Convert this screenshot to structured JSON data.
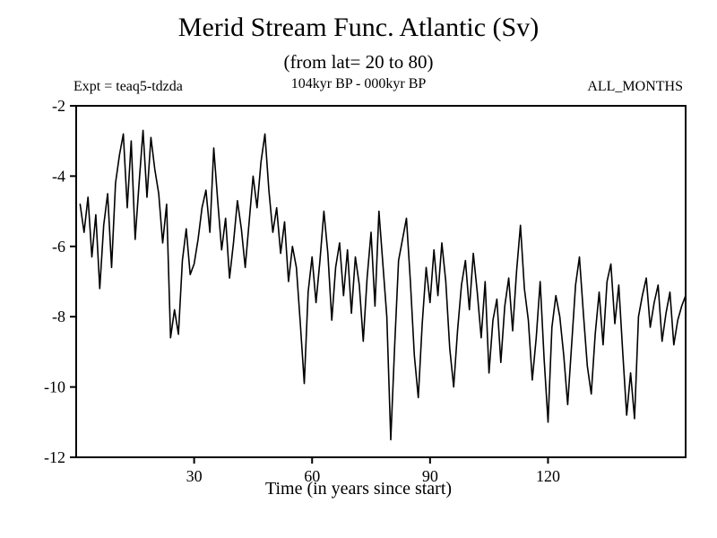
{
  "chart_data": {
    "type": "line",
    "title": "Merid Stream Func. Atlantic (Sv)",
    "subtitle": "(from lat= 20 to 80)",
    "annotations": {
      "left": "Expt = teaq5-tdzda",
      "center": "104kyr BP - 000kyr BP",
      "right": "ALL_MONTHS"
    },
    "xlabel": "Time (in years since start)",
    "ylabel": "",
    "xlim": [
      0,
      155
    ],
    "ylim": [
      -12,
      -2
    ],
    "x_ticks": [
      30,
      60,
      90,
      120
    ],
    "y_ticks": [
      -2,
      -4,
      -6,
      -8,
      -10,
      -12
    ],
    "x_start": 1,
    "x_step": 1,
    "line_color": "#000000",
    "grid": false,
    "legend": "none",
    "values": [
      -4.8,
      -5.6,
      -4.6,
      -6.3,
      -5.1,
      -7.2,
      -5.4,
      -4.5,
      -6.6,
      -4.2,
      -3.4,
      -2.8,
      -4.9,
      -3.0,
      -5.8,
      -4.2,
      -2.7,
      -4.6,
      -2.9,
      -3.8,
      -4.5,
      -5.9,
      -4.8,
      -8.6,
      -7.8,
      -8.5,
      -6.4,
      -5.5,
      -6.8,
      -6.5,
      -5.8,
      -4.9,
      -4.4,
      -5.6,
      -3.2,
      -4.7,
      -6.1,
      -5.2,
      -6.9,
      -5.9,
      -4.7,
      -5.5,
      -6.6,
      -5.3,
      -4.0,
      -4.9,
      -3.6,
      -2.8,
      -4.4,
      -5.6,
      -4.9,
      -6.2,
      -5.3,
      -7.0,
      -6.0,
      -6.6,
      -8.2,
      -9.9,
      -7.3,
      -6.3,
      -7.6,
      -6.4,
      -5.0,
      -6.2,
      -8.1,
      -6.6,
      -5.9,
      -7.4,
      -6.1,
      -7.9,
      -6.3,
      -7.1,
      -8.7,
      -6.9,
      -5.6,
      -7.7,
      -5.0,
      -6.5,
      -8.0,
      -11.5,
      -8.8,
      -6.4,
      -5.8,
      -5.2,
      -7.0,
      -9.1,
      -10.3,
      -8.2,
      -6.6,
      -7.6,
      -6.1,
      -7.4,
      -5.9,
      -7.0,
      -8.9,
      -10.0,
      -8.4,
      -7.1,
      -6.4,
      -7.8,
      -6.2,
      -7.3,
      -8.6,
      -7.0,
      -9.6,
      -8.1,
      -7.5,
      -9.3,
      -7.7,
      -6.9,
      -8.4,
      -6.7,
      -5.4,
      -7.2,
      -8.1,
      -9.8,
      -8.6,
      -7.0,
      -9.2,
      -11.0,
      -8.3,
      -7.4,
      -8.0,
      -9.1,
      -10.5,
      -8.8,
      -7.1,
      -6.3,
      -7.9,
      -9.4,
      -10.2,
      -8.5,
      -7.3,
      -8.8,
      -7.0,
      -6.5,
      -8.2,
      -7.1,
      -9.0,
      -10.8,
      -9.6,
      -10.9,
      -8.0,
      -7.4,
      -6.9,
      -8.3,
      -7.6,
      -7.1,
      -8.7,
      -7.9,
      -7.3,
      -8.8,
      -8.1,
      -7.7,
      -7.4
    ]
  }
}
